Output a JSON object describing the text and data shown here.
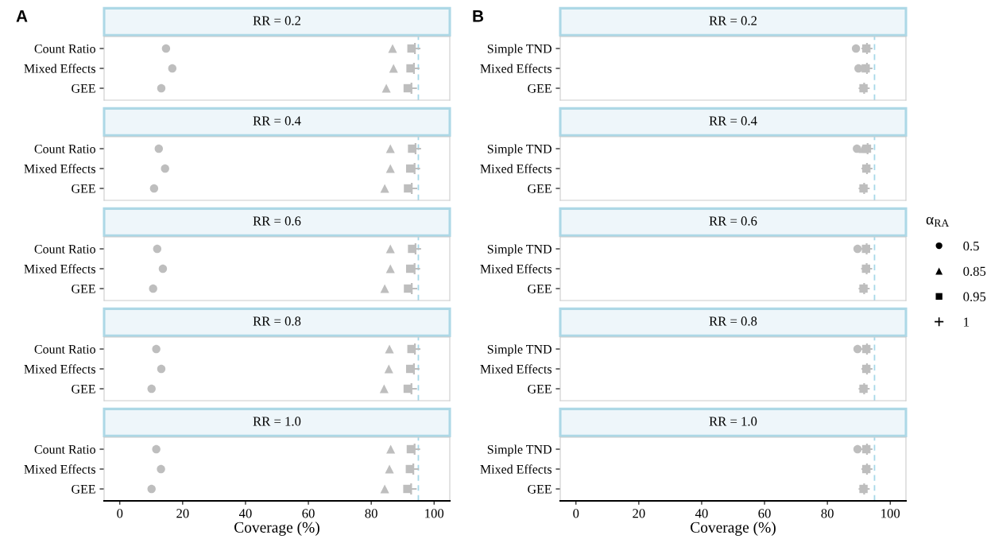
{
  "chart_data": [
    {
      "type": "scatter",
      "title": "RR = 0.2",
      "categories": [
        "Count Ratio",
        "Mixed Effects",
        "GEE"
      ],
      "orientation": "horizontal",
      "xlim": [
        -5,
        105
      ],
      "xticks": [
        0,
        20,
        40,
        60,
        80,
        100
      ],
      "tick_labels": "y",
      "annotations": [
        "A"
      ],
      "ref_lines": [
        {
          "axis": "x",
          "value": 95,
          "color": "#a6d8e8",
          "line_style": "dashed"
        }
      ],
      "series": [
        {
          "marker": "circle",
          "color": "#bebebe",
          "values": [
            14.7,
            16.7,
            13.2
          ]
        },
        {
          "marker": "triangle",
          "color": "#bebebe",
          "values": [
            86.8,
            87.1,
            84.8
          ]
        },
        {
          "marker": "square",
          "color": "#bebebe",
          "values": [
            92.8,
            92.5,
            91.6
          ]
        },
        {
          "marker": "cross",
          "color": "#bebebe",
          "values": [
            93.9,
            93.6,
            92.8
          ]
        }
      ]
    },
    {
      "type": "scatter",
      "title": "RR = 0.4",
      "categories": [
        "Count Ratio",
        "Mixed Effects",
        "GEE"
      ],
      "orientation": "horizontal",
      "xlim": [
        -5,
        105
      ],
      "xticks": [
        0,
        20,
        40,
        60,
        80,
        100
      ],
      "tick_labels": "y",
      "ref_lines": [
        {
          "axis": "x",
          "value": 95,
          "color": "#a6d8e8",
          "line_style": "dashed"
        }
      ],
      "series": [
        {
          "marker": "circle",
          "color": "#bebebe",
          "values": [
            12.4,
            14.4,
            10.9
          ]
        },
        {
          "marker": "triangle",
          "color": "#bebebe",
          "values": [
            86.1,
            86.1,
            84.3
          ]
        },
        {
          "marker": "square",
          "color": "#bebebe",
          "values": [
            93.0,
            92.4,
            91.7
          ]
        },
        {
          "marker": "cross",
          "color": "#bebebe",
          "values": [
            94.1,
            93.8,
            92.9
          ]
        }
      ]
    },
    {
      "type": "scatter",
      "title": "RR = 0.6",
      "categories": [
        "Count Ratio",
        "Mixed Effects",
        "GEE"
      ],
      "orientation": "horizontal",
      "xlim": [
        -5,
        105
      ],
      "xticks": [
        0,
        20,
        40,
        60,
        80,
        100
      ],
      "tick_labels": "y",
      "legend": "right",
      "legend_title": "α$_{RA}$",
      "ref_lines": [
        {
          "axis": "x",
          "value": 95,
          "color": "#a6d8e8",
          "line_style": "dashed"
        }
      ],
      "series": [
        {
          "name": "0.5",
          "marker": "circle",
          "color": "#bebebe",
          "values": [
            11.9,
            13.7,
            10.6
          ]
        },
        {
          "name": "0.85",
          "marker": "triangle",
          "color": "#bebebe",
          "values": [
            86.1,
            86.1,
            84.3
          ]
        },
        {
          "name": "0.95",
          "marker": "square",
          "color": "#bebebe",
          "values": [
            93.0,
            92.4,
            91.7
          ]
        },
        {
          "name": "1",
          "marker": "cross",
          "color": "#bebebe",
          "values": [
            94.1,
            93.8,
            92.9
          ]
        }
      ]
    },
    {
      "type": "scatter",
      "title": "RR = 0.8",
      "categories": [
        "Count Ratio",
        "Mixed Effects",
        "GEE"
      ],
      "orientation": "horizontal",
      "xlim": [
        -5,
        105
      ],
      "xticks": [
        0,
        20,
        40,
        60,
        80,
        100
      ],
      "tick_labels": "y",
      "ref_lines": [
        {
          "axis": "x",
          "value": 95,
          "color": "#a6d8e8",
          "line_style": "dashed"
        }
      ],
      "series": [
        {
          "marker": "circle",
          "color": "#bebebe",
          "values": [
            11.6,
            13.2,
            10.1
          ]
        },
        {
          "marker": "triangle",
          "color": "#bebebe",
          "values": [
            85.8,
            85.6,
            84.1
          ]
        },
        {
          "marker": "square",
          "color": "#bebebe",
          "values": [
            92.8,
            92.4,
            91.6
          ]
        },
        {
          "marker": "cross",
          "color": "#bebebe",
          "values": [
            93.9,
            93.6,
            92.8
          ]
        }
      ]
    },
    {
      "type": "scatter",
      "title": "RR = 1.0",
      "categories": [
        "Count Ratio",
        "Mixed Effects",
        "GEE"
      ],
      "orientation": "horizontal",
      "xlim": [
        -5,
        105
      ],
      "xticks": [
        0,
        20,
        40,
        60,
        80,
        100
      ],
      "xlabel": "Coverage (%)",
      "ref_lines": [
        {
          "axis": "x",
          "value": 95,
          "color": "#a6d8e8",
          "line_style": "dashed"
        }
      ],
      "series": [
        {
          "marker": "circle",
          "color": "#bebebe",
          "values": [
            11.6,
            13.1,
            10.1
          ]
        },
        {
          "marker": "triangle",
          "color": "#bebebe",
          "values": [
            86.2,
            85.8,
            84.3
          ]
        },
        {
          "marker": "square",
          "color": "#bebebe",
          "values": [
            92.6,
            92.3,
            91.5
          ]
        },
        {
          "marker": "cross",
          "color": "#bebebe",
          "values": [
            93.8,
            93.4,
            92.7
          ]
        }
      ]
    },
    {
      "type": "scatter",
      "title": "RR = 0.2",
      "categories": [
        "Simple TND",
        "Mixed Effects",
        "GEE"
      ],
      "orientation": "horizontal",
      "xlim": [
        -5,
        105
      ],
      "xticks": [
        0,
        20,
        40,
        60,
        80,
        100
      ],
      "tick_labels": "y",
      "annotations": [
        "B"
      ],
      "ref_lines": [
        {
          "axis": "x",
          "value": 95,
          "color": "#a6d8e8",
          "line_style": "dashed"
        }
      ],
      "series": [
        {
          "marker": "circle",
          "color": "#bebebe",
          "values": [
            89.1,
            89.9,
            null
          ]
        },
        {
          "marker": "triangle",
          "color": "#bebebe",
          "values": [
            null,
            null,
            null
          ]
        },
        {
          "marker": "square",
          "color": "#bebebe",
          "values": [
            92.4,
            92.2,
            91.5
          ]
        },
        {
          "marker": "cross",
          "color": "#bebebe",
          "values": [
            92.6,
            92.6,
            91.7
          ]
        }
      ]
    },
    {
      "type": "scatter",
      "title": "RR = 0.4",
      "categories": [
        "Simple TND",
        "Mixed Effects",
        "GEE"
      ],
      "orientation": "horizontal",
      "xlim": [
        -5,
        105
      ],
      "xticks": [
        0,
        20,
        40,
        60,
        80,
        100
      ],
      "tick_labels": "y",
      "ref_lines": [
        {
          "axis": "x",
          "value": 95,
          "color": "#a6d8e8",
          "line_style": "dashed"
        }
      ],
      "series": [
        {
          "marker": "circle",
          "color": "#bebebe",
          "values": [
            89.4,
            null,
            null
          ]
        },
        {
          "marker": "triangle",
          "color": "#bebebe",
          "values": [
            91.3,
            null,
            null
          ]
        },
        {
          "marker": "square",
          "color": "#bebebe",
          "values": [
            92.6,
            92.4,
            91.5
          ]
        },
        {
          "marker": "cross",
          "color": "#bebebe",
          "values": [
            92.8,
            92.6,
            91.7
          ]
        }
      ]
    },
    {
      "type": "scatter",
      "title": "RR = 0.6",
      "categories": [
        "Simple TND",
        "Mixed Effects",
        "GEE"
      ],
      "orientation": "horizontal",
      "xlim": [
        -5,
        105
      ],
      "xticks": [
        0,
        20,
        40,
        60,
        80,
        100
      ],
      "tick_labels": "y",
      "ref_lines": [
        {
          "axis": "x",
          "value": 95,
          "color": "#a6d8e8",
          "line_style": "dashed"
        }
      ],
      "series": [
        {
          "marker": "circle",
          "color": "#bebebe",
          "values": [
            89.6,
            null,
            null
          ]
        },
        {
          "marker": "triangle",
          "color": "#bebebe",
          "values": [
            null,
            null,
            null
          ]
        },
        {
          "marker": "square",
          "color": "#bebebe",
          "values": [
            92.3,
            92.3,
            91.5
          ]
        },
        {
          "marker": "cross",
          "color": "#bebebe",
          "values": [
            92.5,
            92.5,
            91.7
          ]
        }
      ]
    },
    {
      "type": "scatter",
      "title": "RR = 0.8",
      "categories": [
        "Simple TND",
        "Mixed Effects",
        "GEE"
      ],
      "orientation": "horizontal",
      "xlim": [
        -5,
        105
      ],
      "xticks": [
        0,
        20,
        40,
        60,
        80,
        100
      ],
      "tick_labels": "y",
      "ref_lines": [
        {
          "axis": "x",
          "value": 95,
          "color": "#a6d8e8",
          "line_style": "dashed"
        }
      ],
      "series": [
        {
          "marker": "circle",
          "color": "#bebebe",
          "values": [
            89.6,
            null,
            null
          ]
        },
        {
          "marker": "triangle",
          "color": "#bebebe",
          "values": [
            null,
            null,
            null
          ]
        },
        {
          "marker": "square",
          "color": "#bebebe",
          "values": [
            92.4,
            92.4,
            91.5
          ]
        },
        {
          "marker": "cross",
          "color": "#bebebe",
          "values": [
            92.6,
            92.6,
            91.7
          ]
        }
      ]
    },
    {
      "type": "scatter",
      "title": "RR = 1.0",
      "categories": [
        "Simple TND",
        "Mixed Effects",
        "GEE"
      ],
      "orientation": "horizontal",
      "xlim": [
        -5,
        105
      ],
      "xticks": [
        0,
        20,
        40,
        60,
        80,
        100
      ],
      "xlabel": "Coverage (%)",
      "ref_lines": [
        {
          "axis": "x",
          "value": 95,
          "color": "#a6d8e8",
          "line_style": "dashed"
        }
      ],
      "series": [
        {
          "marker": "circle",
          "color": "#bebebe",
          "values": [
            89.6,
            null,
            null
          ]
        },
        {
          "marker": "triangle",
          "color": "#bebebe",
          "values": [
            null,
            null,
            null
          ]
        },
        {
          "marker": "square",
          "color": "#bebebe",
          "values": [
            92.4,
            92.4,
            91.5
          ]
        },
        {
          "marker": "cross",
          "color": "#bebebe",
          "values": [
            92.6,
            92.6,
            91.7
          ]
        }
      ]
    }
  ]
}
